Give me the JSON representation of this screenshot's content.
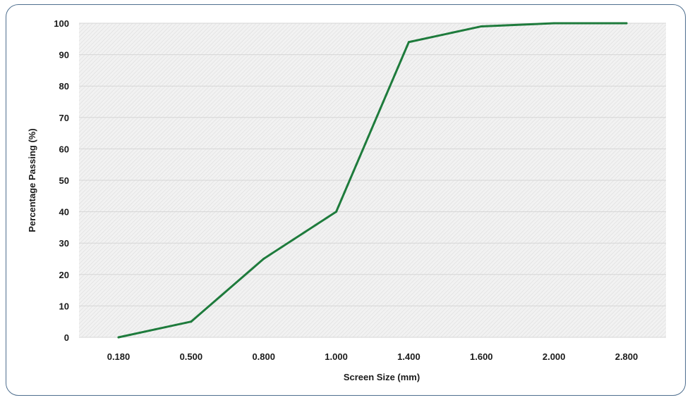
{
  "chart_data": {
    "type": "line",
    "title": "",
    "xlabel": "Screen Size (mm)",
    "ylabel": "Percentage Passing (%)",
    "categories": [
      "0.180",
      "0.500",
      "0.800",
      "1.000",
      "1.400",
      "1.600",
      "2.000",
      "2.800"
    ],
    "series": [
      {
        "values": [
          0,
          5,
          25,
          40,
          94,
          99,
          100,
          100
        ]
      }
    ],
    "ylim": [
      0,
      100
    ],
    "yticks": [
      0,
      10,
      20,
      30,
      40,
      50,
      60,
      70,
      80,
      90,
      100
    ],
    "grid": true,
    "legend": "none",
    "colors": {
      "line": "#1e7b3c",
      "plot_background": "#ececec",
      "frame_border": "#4f6f8f"
    }
  }
}
